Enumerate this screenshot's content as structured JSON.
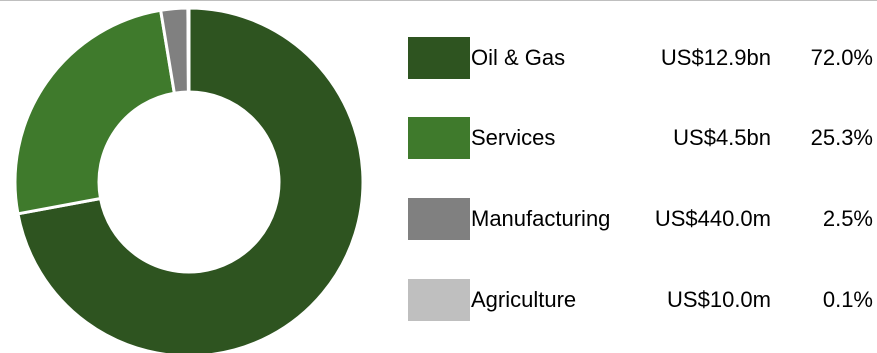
{
  "chart_data": {
    "type": "pie",
    "variant": "donut",
    "title": "",
    "categories": [
      "Oil & Gas",
      "Services",
      "Manufacturing",
      "Agriculture"
    ],
    "values": [
      72.0,
      25.3,
      2.5,
      0.1
    ],
    "amounts": [
      "US$12.9bn",
      "US$4.5bn",
      "US$440.0m",
      "US$10.0m"
    ],
    "percent_labels": [
      "72.0%",
      "25.3%",
      "2.5%",
      "0.1%"
    ],
    "colors": [
      "#2e5420",
      "#3f7a2c",
      "#808080",
      "#bfbfbf"
    ],
    "legend_position": "right",
    "start_angle": "12 o'clock, clockwise"
  }
}
